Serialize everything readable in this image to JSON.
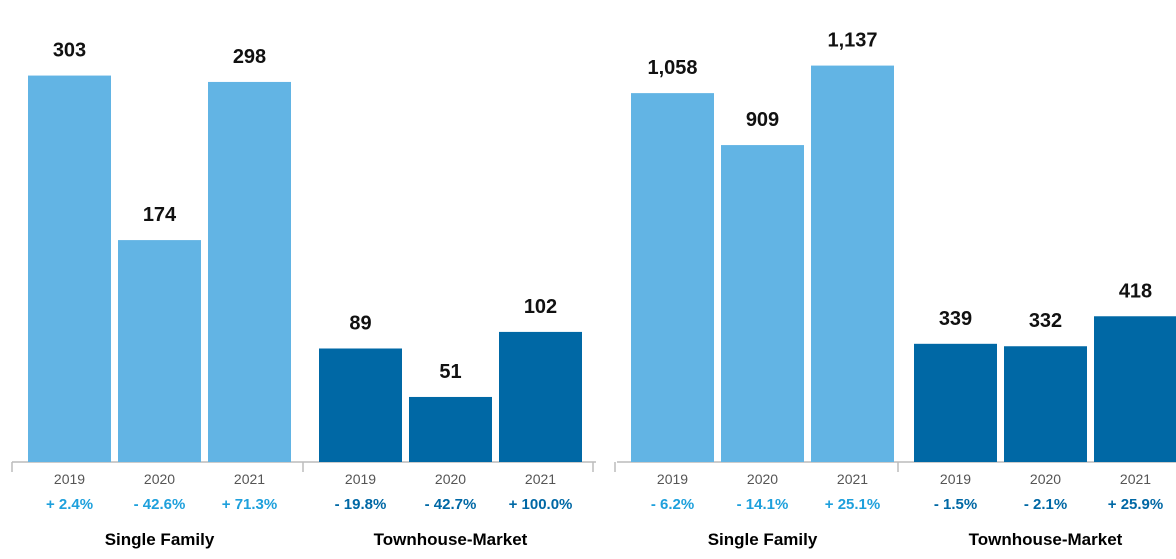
{
  "colors": {
    "single_family": "#62b4e4",
    "townhouse": "#0068a5",
    "pct_light": "#1ea0dc",
    "pct_dark": "#0068a5",
    "axis": "#bcbcbc"
  },
  "chart_data": [
    {
      "type": "bar",
      "title": "",
      "ylim": [
        0,
        345
      ],
      "groups": [
        {
          "label": "Single Family",
          "color": "single_family",
          "pct_color": "pct_light",
          "categories": [
            "2019",
            "2020",
            "2021"
          ],
          "values": [
            303,
            174,
            298
          ],
          "value_labels": [
            "303",
            "174",
            "298"
          ],
          "changes": [
            "+ 2.4%",
            "- 42.6%",
            "+ 71.3%"
          ]
        },
        {
          "label": "Townhouse-Market",
          "color": "townhouse",
          "pct_color": "pct_dark",
          "categories": [
            "2019",
            "2020",
            "2021"
          ],
          "values": [
            89,
            51,
            102
          ],
          "value_labels": [
            "89",
            "51",
            "102"
          ],
          "changes": [
            "- 19.8%",
            "- 42.7%",
            "+ 100.0%"
          ]
        }
      ]
    },
    {
      "type": "bar",
      "title": "",
      "ylim": [
        0,
        1262
      ],
      "groups": [
        {
          "label": "Single Family",
          "color": "single_family",
          "pct_color": "pct_light",
          "categories": [
            "2019",
            "2020",
            "2021"
          ],
          "values": [
            1058,
            909,
            1137
          ],
          "value_labels": [
            "1,058",
            "909",
            "1,137"
          ],
          "changes": [
            "- 6.2%",
            "- 14.1%",
            "+ 25.1%"
          ]
        },
        {
          "label": "Townhouse-Market",
          "color": "townhouse",
          "pct_color": "pct_dark",
          "categories": [
            "2019",
            "2020",
            "2021"
          ],
          "values": [
            339,
            332,
            418
          ],
          "value_labels": [
            "339",
            "332",
            "418"
          ],
          "changes": [
            "- 1.5%",
            "- 2.1%",
            "+ 25.9%"
          ]
        }
      ]
    }
  ]
}
